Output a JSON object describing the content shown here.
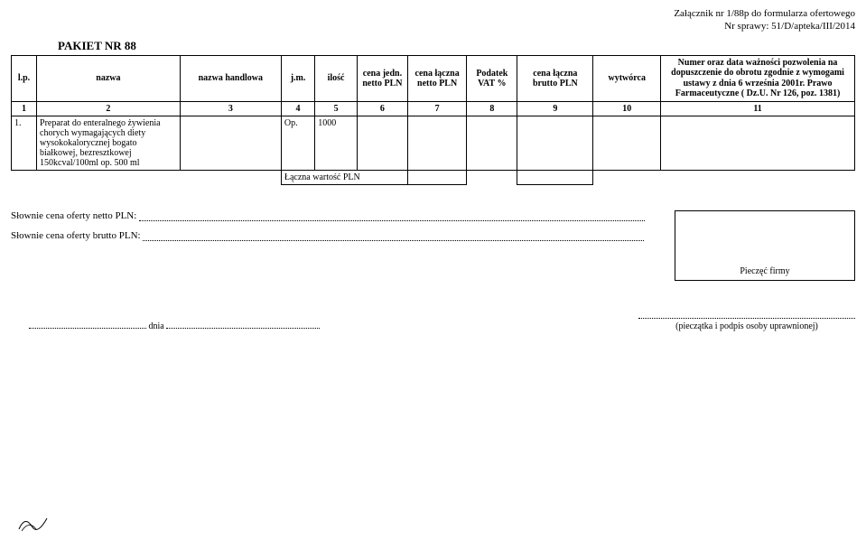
{
  "header": {
    "attachment": "Załącznik nr 1/88p do formularza ofertowego",
    "case_no": "Nr sprawy: 51/D/apteka/III/2014"
  },
  "pakiet": "PAKIET NR 88",
  "columns": {
    "lp": "l.p.",
    "nazwa": "nazwa",
    "nazwa_handlowa": "nazwa handlowa",
    "jm": "j.m.",
    "ilosc": "ilość",
    "cena_jedn": "cena jedn. netto PLN",
    "cena_laczna_netto": "cena łączna netto PLN",
    "vat": "Podatek VAT %",
    "cena_laczna_brutto": "cena łączna brutto PLN",
    "wytworca": "wytwórca",
    "pozwolenie": "Numer oraz data ważności pozwolenia na dopuszczenie do obrotu zgodnie z wymogami ustawy z dnia 6 września 2001r. Prawo Farmaceutyczne ( Dz.U. Nr 126, poz. 1381)"
  },
  "colnums": [
    "1",
    "2",
    "3",
    "4",
    "5",
    "6",
    "7",
    "8",
    "9",
    "10",
    "11"
  ],
  "rows": [
    {
      "lp": "1.",
      "nazwa": "Preparat do enteralnego żywienia chorych wymagających diety wysokokalorycznej bogato białkowej, bezresztkowej 150kcval/100ml op. 500 ml",
      "jm": "Op.",
      "ilosc": "1000"
    }
  ],
  "total_label": "Łączna wartość PLN",
  "slownie_netto_label": "Słownie cena oferty netto PLN:",
  "slownie_brutto_label": "Słownie cena oferty brutto PLN:",
  "stamp_label": "Pieczęć firmy",
  "date_label": "dnia",
  "sign_label": "(pieczątka i podpis osoby uprawnionej)",
  "layout": {
    "col_widths_pct": [
      3,
      17,
      12,
      4,
      5,
      6,
      7,
      6,
      9,
      8,
      23
    ]
  }
}
